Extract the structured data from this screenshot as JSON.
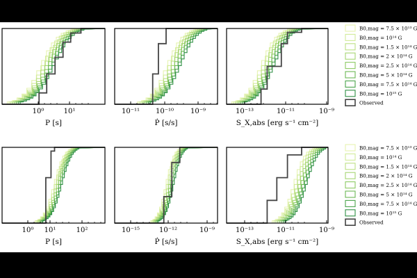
{
  "colors": {
    "observed": "#444444",
    "series": [
      "#e6f3b0",
      "#d2eb9a",
      "#bde185",
      "#a6d672",
      "#8cca63",
      "#6cb855",
      "#4aa44b",
      "#2e8f44"
    ]
  },
  "legend": {
    "top": [
      "B0,mag = 7.5 × 10¹³ G",
      "B0,mag = 10¹⁴ G",
      "B0,mag = 1.5 × 10¹⁴ G",
      "B0,mag = 2 × 10¹⁴ G",
      "B0,mag = 2.5 × 10¹⁴ G",
      "B0,mag = 5 × 10¹⁴ G",
      "B0,mag = 7.5 × 10¹⁴ G",
      "B0,mag = 10¹⁵ G",
      "Observed"
    ],
    "bottom": [
      "B0,mag = 7.5 × 10¹³ G",
      "B0,mag = 10¹⁴ G",
      "B0,mag = 1.5 × 10¹⁴ G",
      "B0,mag = 2 × 10¹⁴ G",
      "B0,mag = 2.5 × 10¹⁴ G",
      "B0,mag = 5 × 10¹⁴ G",
      "B0,mag = 7.5 × 10¹⁴ G",
      "B0,mag = 10¹⁵ G",
      "Observed"
    ]
  },
  "chart_data": [
    {
      "type": "line",
      "xscale": "log",
      "xlabel": "P [s]",
      "xticks": [
        "10⁰",
        "10¹"
      ],
      "xlim": [
        0.1,
        100
      ],
      "ylim": [
        0,
        1
      ],
      "series": [
        {
          "name": "Observed",
          "x": [
            0.7,
            1.2,
            2.0,
            3.5,
            6,
            10,
            20
          ],
          "y": [
            0,
            0.15,
            0.4,
            0.62,
            0.82,
            0.94,
            1
          ]
        }
      ]
    },
    {
      "type": "line",
      "xscale": "log",
      "xlabel": "Ṗ [s/s]",
      "xticks": [
        "10⁻¹¹",
        "10⁻¹⁰",
        "10⁻⁹"
      ],
      "xlim": [
        1e-12,
        1e-08
      ],
      "ylim": [
        0,
        1
      ],
      "series": [
        {
          "name": "Observed",
          "x": [
            2e-11,
            3e-11,
            5e-11,
            1e-10
          ],
          "y": [
            0,
            0.4,
            0.8,
            1
          ]
        }
      ]
    },
    {
      "type": "line",
      "xscale": "log",
      "xlabel": "S_X,abs [erg s⁻¹ cm⁻²]",
      "xticks": [
        "10⁻¹³",
        "10⁻¹¹",
        "10⁻⁹"
      ],
      "xlim": [
        1e-14,
        1e-09
      ],
      "ylim": [
        0,
        1
      ],
      "series": [
        {
          "name": "Observed",
          "x": [
            1e-13,
            5e-13,
            1e-12,
            5e-12,
            1e-11,
            5e-11
          ],
          "y": [
            0,
            0.2,
            0.5,
            0.8,
            0.95,
            1
          ]
        }
      ]
    },
    {
      "type": "line",
      "xscale": "log",
      "xlabel": "P [s]",
      "xticks": [
        "10⁰",
        "10¹",
        "10²"
      ],
      "xlim": [
        0.1,
        1000
      ],
      "ylim": [
        0,
        1
      ],
      "series": [
        {
          "name": "Observed",
          "x": [
            3,
            5,
            8,
            11
          ],
          "y": [
            0,
            0.6,
            0.95,
            1
          ]
        }
      ]
    },
    {
      "type": "line",
      "xscale": "log",
      "xlabel": "Ṗ [s/s]",
      "xticks": [
        "10⁻¹⁵",
        "10⁻¹²",
        "10⁻⁹"
      ],
      "xlim": [
        1e-17,
        1e-08
      ],
      "ylim": [
        0,
        1
      ],
      "series": [
        {
          "name": "Observed",
          "x": [
            5e-14,
            2e-13,
            1e-12,
            5e-12
          ],
          "y": [
            0,
            0.35,
            0.8,
            1
          ]
        }
      ]
    },
    {
      "type": "line",
      "xscale": "log",
      "xlabel": "S_X,abs [erg s⁻¹ cm⁻²]",
      "xticks": [
        "10⁻¹³",
        "10⁻¹¹",
        "10⁻⁹"
      ],
      "xlim": [
        1e-14,
        1e-09
      ],
      "ylim": [
        0,
        1
      ],
      "series": [
        {
          "name": "Observed",
          "x": [
            3e-13,
            1e-12,
            3e-12,
            1e-11,
            5e-11
          ],
          "y": [
            0,
            0.3,
            0.6,
            0.9,
            1
          ]
        }
      ]
    }
  ]
}
